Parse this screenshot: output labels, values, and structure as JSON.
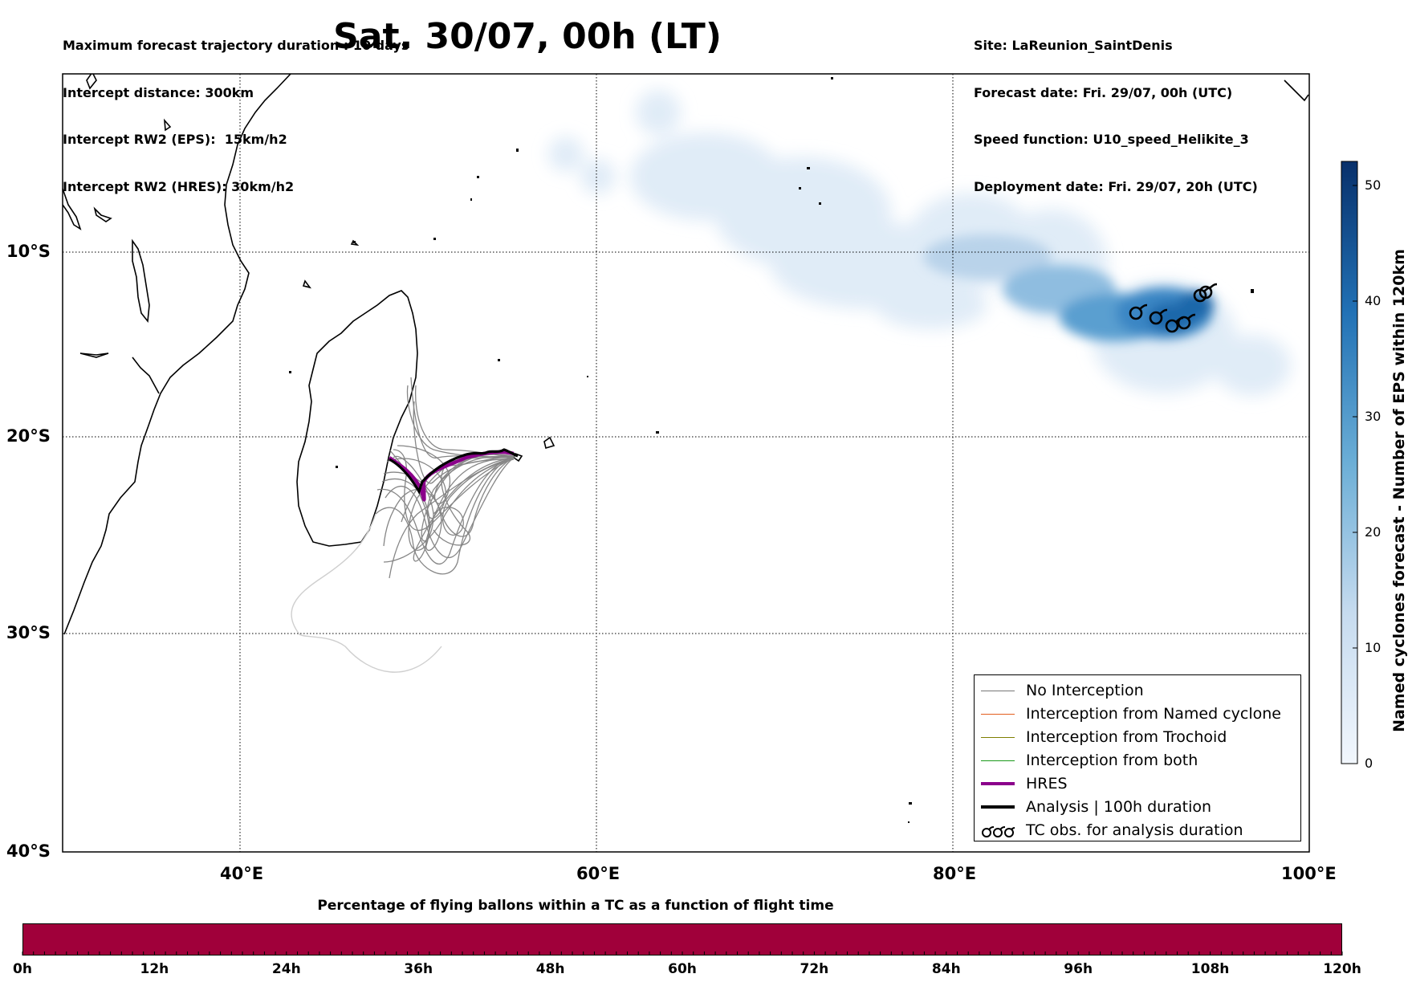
{
  "header_left": [
    "Maximum forecast trajectory duration : 10 days",
    "Intercept distance: 300km",
    "Intercept RW2 (EPS):  15km/h2",
    "Intercept RW2 (HRES): 30km/h2"
  ],
  "header_right": [
    "Site: LaReunion_SaintDenis",
    "Forecast date: Fri. 29/07, 00h (UTC)",
    "Speed function: U10_speed_Helikite_3",
    "Deployment date: Fri. 29/07, 20h (UTC)"
  ],
  "title": "Sat. 30/07, 00h (LT)",
  "map": {
    "lat_labels": [
      "10°S",
      "20°S",
      "30°S",
      "40°S"
    ],
    "lon_labels": [
      "40°E",
      "60°E",
      "80°E",
      "100°E"
    ],
    "lon_range": [
      30,
      100
    ],
    "lat_range": [
      -40,
      -0.7
    ],
    "grid": "dotted"
  },
  "colorbar": {
    "label": "Named cyclones forecast - Number of EPS within 120km",
    "ticks": [
      "0",
      "10",
      "20",
      "30",
      "40",
      "50"
    ],
    "range": [
      0,
      52
    ],
    "low_color": "#e6f0fa",
    "high_color": "#08306b"
  },
  "legend": {
    "items": [
      {
        "label": "No Interception",
        "color": "#777777"
      },
      {
        "label": "Interception from Named cyclone",
        "color": "#e35e1e"
      },
      {
        "label": "Interception from Trochoid",
        "color": "#7f7f00"
      },
      {
        "label": "Interception from both",
        "color": "#1a9a1a"
      },
      {
        "label": "HRES",
        "color": "#8b008b"
      },
      {
        "label": "Analysis | 100h duration",
        "color": "#000000"
      },
      {
        "label": "TC obs. for analysis duration",
        "icon": "cyclone-symbol-icon"
      }
    ]
  },
  "bottom_bar": {
    "title": "Percentage of flying ballons within a TC as a function of flight time",
    "ticks": [
      "0h",
      "12h",
      "24h",
      "36h",
      "48h",
      "60h",
      "72h",
      "84h",
      "96h",
      "108h",
      "120h"
    ],
    "color": "#a0003a"
  }
}
